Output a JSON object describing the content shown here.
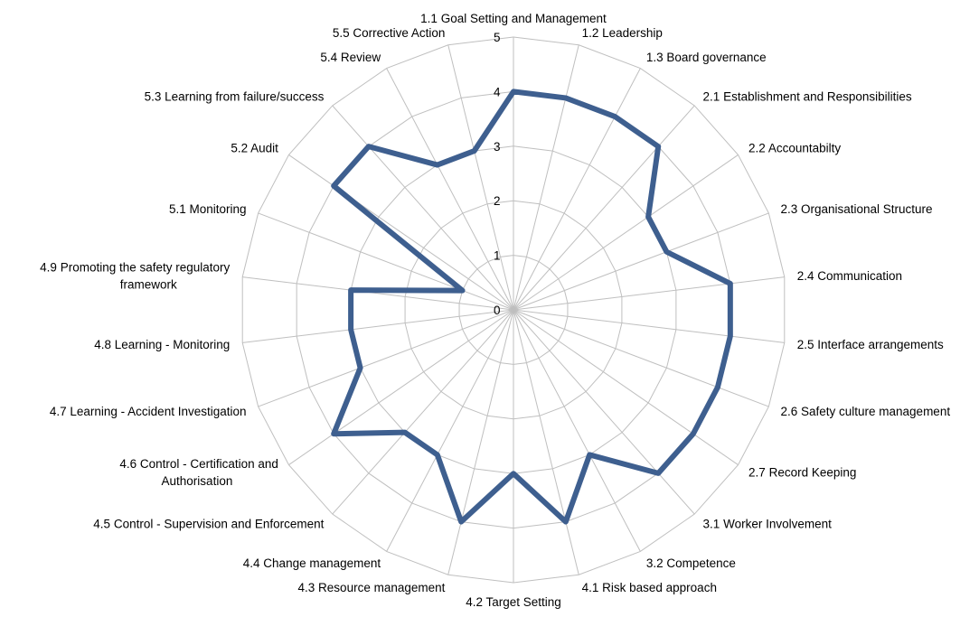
{
  "chart_data": {
    "type": "radar",
    "categories": [
      "1.1 Goal Setting and Management",
      "1.2 Leadership",
      "1.3 Board governance",
      "2.1 Establishment and Responsibilities",
      "2.2 Accountabilty",
      "2.3 Organisational Structure",
      "2.4 Communication",
      "2.5 Interface arrangements",
      "2.6 Safety culture management",
      "2.7 Record Keeping",
      "3.1 Worker Involvement",
      "3.2 Competence",
      "4.1 Risk based approach",
      "4.2 Target Setting",
      "4.3 Resource management",
      "4.4 Change management",
      "4.5 Control - Supervision and Enforcement",
      "4.6 Control - Certification and Authorisation",
      "4.7 Learning - Accident Investigation",
      "4.8 Learning - Monitoring",
      "4.9 Promoting the safety regulatory framework",
      "5.1 Monitoring",
      "5.2 Audit",
      "5.3 Learning from failure/success",
      "5.4 Review",
      "5.5 Corrective Action"
    ],
    "series": [
      {
        "values": [
          4,
          4,
          4,
          4,
          3,
          3,
          4,
          4,
          4,
          4,
          4,
          3,
          4,
          3,
          4,
          3,
          3,
          4,
          3,
          3,
          3,
          1,
          4,
          4,
          3,
          3
        ]
      }
    ],
    "tick_labels": [
      "0",
      "1",
      "2",
      "3",
      "4",
      "5"
    ],
    "rlim": [
      0,
      5
    ],
    "grid": true,
    "legend": "none",
    "colors": {
      "series": "#3e5f8f",
      "grid": "#bfbfbf"
    }
  }
}
